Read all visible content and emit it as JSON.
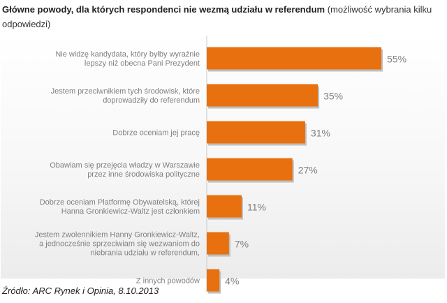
{
  "header": {
    "title_bold": "Główne powody, dla których respondenci nie wezmą udziału w referendum",
    "title_note": "(możliwość wybrania kilku odpowiedzi)"
  },
  "footer": {
    "source": "Źródło: ARC Rynek i Opinia, 8.10.2013"
  },
  "colors": {
    "bar": "#E8700F",
    "bar_shadow": "#BFBFBF",
    "label_text": "#7f7f7f",
    "value_text": "#7f7f7f",
    "axis": "#c8c8c8"
  },
  "chart_data": {
    "type": "bar",
    "orientation": "horizontal",
    "categories": [
      [
        "Nie widzę kandydata, który byłby wyraźnie",
        "lepszy niż obecna Pani Prezydent"
      ],
      [
        "Jestem przeciwnikiem tych środowisk, które",
        "doprowadziły do referendum"
      ],
      [
        "Dobrze oceniam jej pracę"
      ],
      [
        "Obawiam się przejęcia władzy w Warszawie",
        "przez inne środowiska polityczne"
      ],
      [
        "Dobrze oceniam Platformę Obywatelską, której",
        "Hanna Gronkiewicz-Waltz jest członkiem"
      ],
      [
        "Jestem zwolennikiem Hanny Gronkiewicz-Waltz,",
        "a jednocześnie sprzeciwiam się wezwaniom do",
        "niebrania udziału w referendum,"
      ],
      [
        "Z innych powodów"
      ]
    ],
    "values": [
      55,
      35,
      31,
      27,
      11,
      7,
      4
    ],
    "value_labels": [
      "55%",
      "35%",
      "31%",
      "27%",
      "11%",
      "7%",
      "4%"
    ],
    "unit": "%",
    "xlim": [
      0,
      55
    ],
    "grid": false,
    "legend": "none"
  }
}
